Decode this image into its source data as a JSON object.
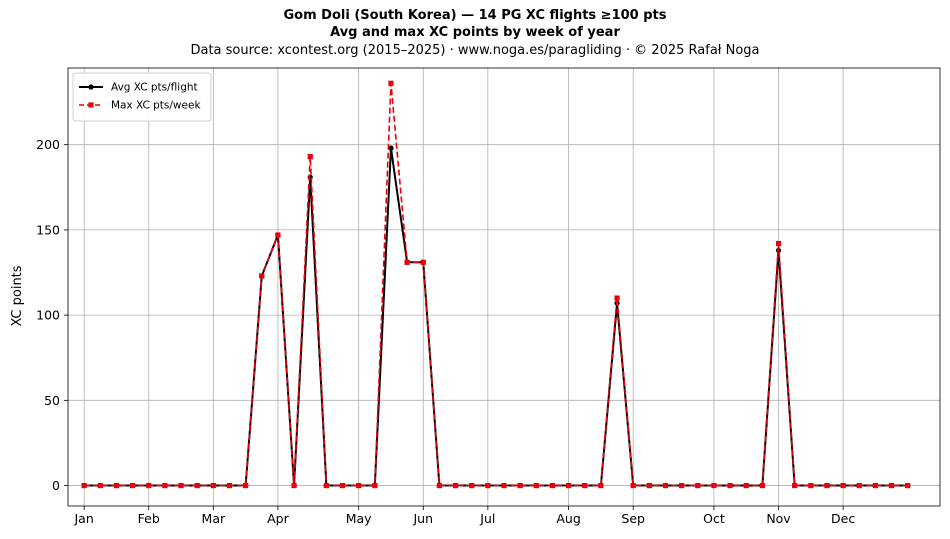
{
  "chart_data": {
    "type": "line",
    "title": "Gom Doli (South Korea)  —  14 PG XC flights ≥100 pts",
    "subtitle": "Avg and max XC points by week of year",
    "source": "Data source: xcontest.org (2015–2025)  ·  www.noga.es/paragliding  ·  © 2025 Rafał Noga",
    "xlabel": "",
    "ylabel": "XC points",
    "xlim": [
      -1,
      53
    ],
    "ylim": [
      -12,
      245
    ],
    "yticks": [
      0,
      50,
      100,
      150,
      200
    ],
    "xtick_labels": [
      "Jan",
      "Feb",
      "Mar",
      "Apr",
      "May",
      "Jun",
      "Jul",
      "Aug",
      "Sep",
      "Oct",
      "Nov",
      "Dec"
    ],
    "xtick_positions": [
      0,
      4,
      8,
      12,
      17,
      21,
      25,
      30,
      34,
      39,
      43,
      47
    ],
    "grid": true,
    "legend": "top-left",
    "x": [
      0,
      1,
      2,
      3,
      4,
      5,
      6,
      7,
      8,
      9,
      10,
      11,
      12,
      13,
      14,
      15,
      16,
      17,
      18,
      19,
      20,
      21,
      22,
      23,
      24,
      25,
      26,
      27,
      28,
      29,
      30,
      31,
      32,
      33,
      34,
      35,
      36,
      37,
      38,
      39,
      40,
      41,
      42,
      43,
      44,
      45,
      46,
      47,
      48,
      49,
      50,
      51
    ],
    "series": [
      {
        "name": "Avg XC pts/flight",
        "color": "#000000",
        "style": "solid",
        "marker": "circle",
        "values": [
          0,
          0,
          0,
          0,
          0,
          0,
          0,
          0,
          0,
          0,
          0,
          123,
          147,
          0,
          181,
          0,
          0,
          0,
          0,
          198,
          131,
          131,
          0,
          0,
          0,
          0,
          0,
          0,
          0,
          0,
          0,
          0,
          0,
          107,
          0,
          0,
          0,
          0,
          0,
          0,
          0,
          0,
          0,
          138,
          0,
          0,
          0,
          0,
          0,
          0,
          0,
          0
        ]
      },
      {
        "name": "Max XC pts/week",
        "color": "#e8000b",
        "style": "dashed",
        "marker": "square",
        "values": [
          0,
          0,
          0,
          0,
          0,
          0,
          0,
          0,
          0,
          0,
          0,
          123,
          147,
          0,
          193,
          0,
          0,
          0,
          0,
          236,
          131,
          131,
          0,
          0,
          0,
          0,
          0,
          0,
          0,
          0,
          0,
          0,
          0,
          110,
          0,
          0,
          0,
          0,
          0,
          0,
          0,
          0,
          0,
          142,
          0,
          0,
          0,
          0,
          0,
          0,
          0,
          0
        ]
      }
    ]
  }
}
